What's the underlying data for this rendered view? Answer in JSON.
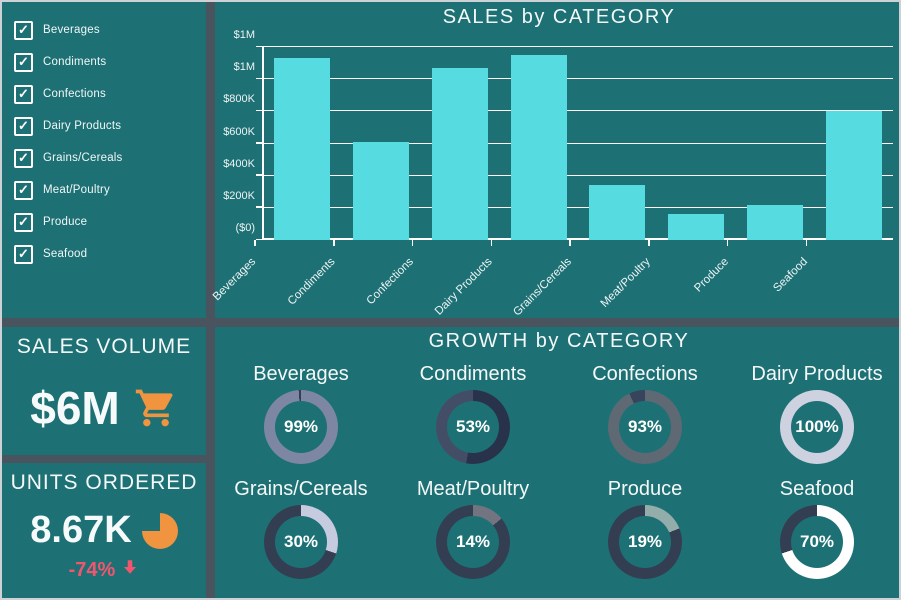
{
  "colors": {
    "background_teal": "#1d7175",
    "divider_gray": "#4a545f",
    "bar_fill": "#55dbe0",
    "accent_orange": "#f09440",
    "negative_pink": "#f2566e",
    "text_white": "#f5f8f8",
    "donut_track_dark": "#333e52"
  },
  "sidebar": {
    "items": [
      {
        "label": "Beverages",
        "checked": true
      },
      {
        "label": "Condiments",
        "checked": true
      },
      {
        "label": "Confections",
        "checked": true
      },
      {
        "label": "Dairy Products",
        "checked": true
      },
      {
        "label": "Grains/Cereals",
        "checked": true
      },
      {
        "label": "Meat/Poultry",
        "checked": true
      },
      {
        "label": "Produce",
        "checked": true
      },
      {
        "label": "Seafood",
        "checked": true
      }
    ]
  },
  "sales_chart": {
    "title": "SALES by CATEGORY",
    "ymax_k": 1200,
    "y_ticks": [
      {
        "label": "($0)",
        "value_k": 0
      },
      {
        "label": "$200K",
        "value_k": 200
      },
      {
        "label": "$400K",
        "value_k": 400
      },
      {
        "label": "$600K",
        "value_k": 600
      },
      {
        "label": "$800K",
        "value_k": 800
      },
      {
        "label": "$1M",
        "value_k": 1000
      },
      {
        "label": "$1M",
        "value_k": 1200
      }
    ]
  },
  "kpis": {
    "sales_volume": {
      "title": "SALES VOLUME",
      "value": "$6M",
      "icon": "shopping-cart-icon"
    },
    "units_ordered": {
      "title": "UNITS ORDERED",
      "value": "8.67K",
      "icon": "pie-chart-icon",
      "delta": "-74%",
      "delta_direction": "down"
    }
  },
  "growth": {
    "title": "GROWTH by CATEGORY",
    "items": [
      {
        "label": "Beverages",
        "percent": 99,
        "color": "#7d87a3",
        "track": "#333e52"
      },
      {
        "label": "Condiments",
        "percent": 53,
        "color": "#28334b",
        "track": "#434e66"
      },
      {
        "label": "Confections",
        "percent": 93,
        "color": "#5e6974",
        "track": "#38445c"
      },
      {
        "label": "Dairy Products",
        "percent": 100,
        "color": "#ced2e0",
        "track": "#ced2e0"
      },
      {
        "label": "Grains/Cereals",
        "percent": 30,
        "color": "#c6cbdf",
        "track": "#333e52"
      },
      {
        "label": "Meat/Poultry",
        "percent": 14,
        "color": "#72757f",
        "track": "#333e52"
      },
      {
        "label": "Produce",
        "percent": 19,
        "color": "#93aeaa",
        "track": "#333e52"
      },
      {
        "label": "Seafood",
        "percent": 70,
        "color": "#ffffff",
        "track": "#333e52"
      }
    ]
  },
  "chart_data": [
    {
      "type": "bar",
      "title": "SALES by CATEGORY",
      "categories": [
        "Beverages",
        "Condiments",
        "Confections",
        "Dairy Products",
        "Grains/Cereals",
        "Meat/Poultry",
        "Produce",
        "Seafood"
      ],
      "values": [
        1130000,
        610000,
        1070000,
        1150000,
        340000,
        160000,
        215000,
        800000
      ],
      "xlabel": "",
      "ylabel": "",
      "ylim": [
        0,
        1200000
      ],
      "ytick_labels": [
        "($0)",
        "$200K",
        "$400K",
        "$600K",
        "$800K",
        "$1M",
        "$1M"
      ],
      "grid": true,
      "legend": false,
      "bar_color": "#55dbe0"
    },
    {
      "type": "pie",
      "subtype": "donut-kpi-grid",
      "title": "GROWTH by CATEGORY",
      "categories": [
        "Beverages",
        "Condiments",
        "Confections",
        "Dairy Products",
        "Grains/Cereals",
        "Meat/Poultry",
        "Produce",
        "Seafood"
      ],
      "values": [
        99,
        53,
        93,
        100,
        30,
        14,
        19,
        70
      ],
      "unit": "%"
    }
  ]
}
